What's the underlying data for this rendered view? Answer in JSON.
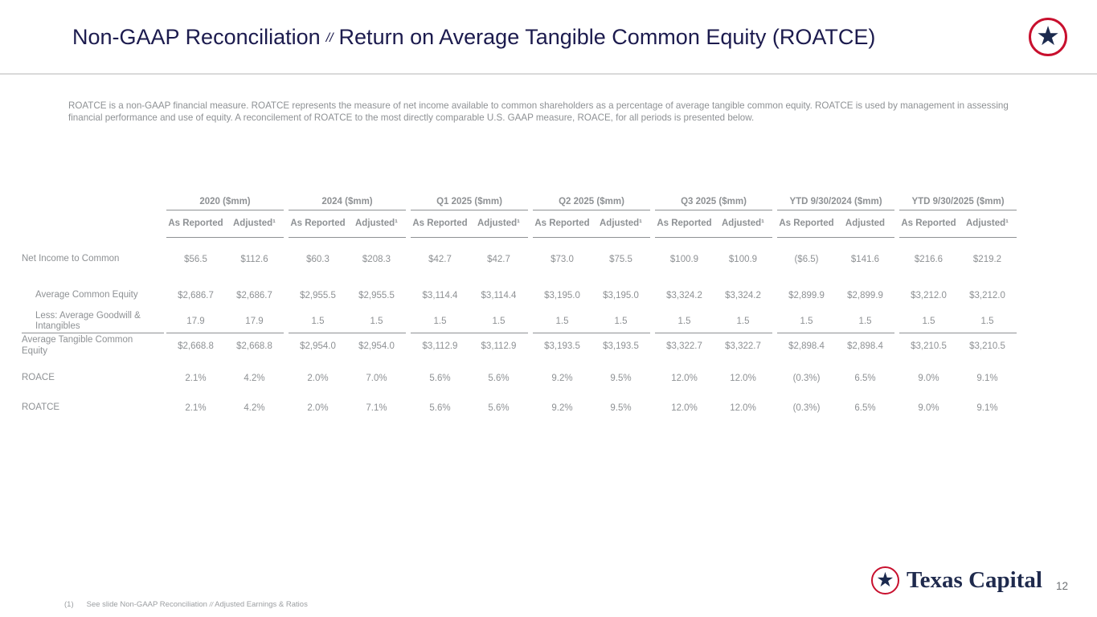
{
  "header": {
    "title_left": "Non-GAAP Reconciliation",
    "title_separator": "//",
    "title_right": "Return on Average Tangible Common Equity (ROATCE)"
  },
  "intro_paragraph": "ROATCE is a non-GAAP financial measure.  ROATCE represents the measure of net income available to common shareholders as a percentage of average tangible common equity.  ROATCE is used by management in assessing financial performance and use of equity.  A reconcilement of ROATCE to the most directly comparable U.S. GAAP measure, ROACE, for all periods is presented below.",
  "table": {
    "column_groups": [
      {
        "label": "2020 ($mm)",
        "subcolumns": [
          "As Reported",
          "Adjusted¹"
        ]
      },
      {
        "label": "2024 ($mm)",
        "subcolumns": [
          "As Reported",
          "Adjusted¹"
        ]
      },
      {
        "label": "Q1 2025 ($mm)",
        "subcolumns": [
          "As Reported",
          "Adjusted¹"
        ]
      },
      {
        "label": "Q2 2025 ($mm)",
        "subcolumns": [
          "As Reported",
          "Adjusted¹"
        ]
      },
      {
        "label": "Q3 2025 ($mm)",
        "subcolumns": [
          "As Reported",
          "Adjusted¹"
        ]
      },
      {
        "label": "YTD 9/30/2024 ($mm)",
        "subcolumns": [
          "As Reported",
          "Adjusted"
        ]
      },
      {
        "label": "YTD 9/30/2025 ($mm)",
        "subcolumns": [
          "As Reported",
          "Adjusted¹"
        ]
      }
    ],
    "rows": [
      {
        "label": "Net Income to Common",
        "indent": false,
        "total_line_above": false,
        "values": [
          "$56.5",
          "$112.6",
          "$60.3",
          "$208.3",
          "$42.7",
          "$42.7",
          "$73.0",
          "$75.5",
          "$100.9",
          "$100.9",
          "($6.5)",
          "$141.6",
          "$216.6",
          "$219.2"
        ]
      },
      {
        "label": "Average Common Equity",
        "indent": true,
        "total_line_above": false,
        "values": [
          "$2,686.7",
          "$2,686.7",
          "$2,955.5",
          "$2,955.5",
          "$3,114.4",
          "$3,114.4",
          "$3,195.0",
          "$3,195.0",
          "$3,324.2",
          "$3,324.2",
          "$2,899.9",
          "$2,899.9",
          "$3,212.0",
          "$3,212.0"
        ]
      },
      {
        "label": "Less: Average Goodwill & Intangibles",
        "indent": true,
        "total_line_above": false,
        "values": [
          "17.9",
          "17.9",
          "1.5",
          "1.5",
          "1.5",
          "1.5",
          "1.5",
          "1.5",
          "1.5",
          "1.5",
          "1.5",
          "1.5",
          "1.5",
          "1.5"
        ]
      },
      {
        "label": "Average Tangible Common Equity",
        "indent": false,
        "total_line_above": true,
        "values": [
          "$2,668.8",
          "$2,668.8",
          "$2,954.0",
          "$2,954.0",
          "$3,112.9",
          "$3,112.9",
          "$3,193.5",
          "$3,193.5",
          "$3,322.7",
          "$3,322.7",
          "$2,898.4",
          "$2,898.4",
          "$3,210.5",
          "$3,210.5"
        ]
      },
      {
        "label": "ROACE",
        "indent": false,
        "total_line_above": false,
        "values": [
          "2.1%",
          "4.2%",
          "2.0%",
          "7.0%",
          "5.6%",
          "5.6%",
          "9.2%",
          "9.5%",
          "12.0%",
          "12.0%",
          "(0.3%)",
          "6.5%",
          "9.0%",
          "9.1%"
        ]
      },
      {
        "label": "ROATCE",
        "indent": false,
        "total_line_above": false,
        "values": [
          "2.1%",
          "4.2%",
          "2.0%",
          "7.1%",
          "5.6%",
          "5.6%",
          "9.2%",
          "9.5%",
          "12.0%",
          "12.0%",
          "(0.3%)",
          "6.5%",
          "9.0%",
          "9.1%"
        ]
      }
    ]
  },
  "footnote": {
    "marker": "(1)",
    "text_before_sep": "See slide Non-GAAP Reconciliation",
    "separator": "//",
    "text_after_sep": "Adjusted Earnings & Ratios"
  },
  "brand": {
    "star": "★",
    "name": "Texas Capital",
    "page_number": "12",
    "red": "#c8102e",
    "navy": "#1b2a4e"
  }
}
